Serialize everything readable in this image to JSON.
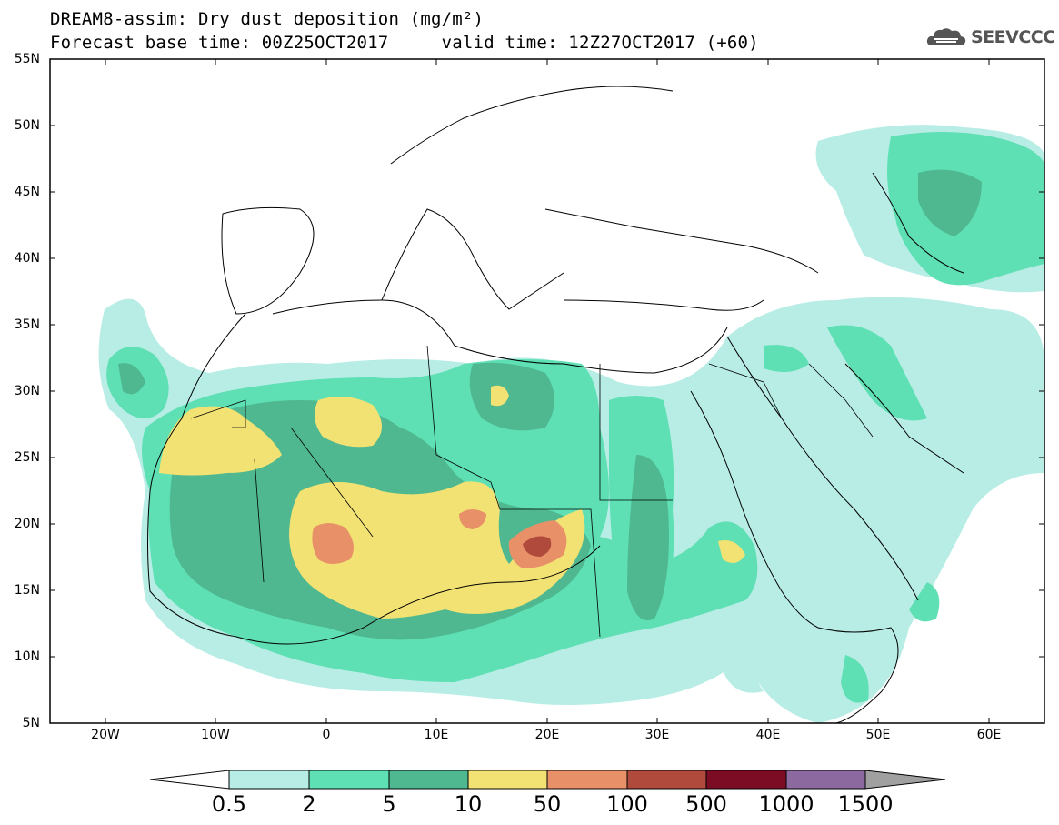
{
  "title": {
    "line1": "DREAM8-assim: Dry dust deposition (mg/m²)",
    "line2": "Forecast base time: 00Z25OCT2017     valid time: 12Z27OCT2017 (+60)"
  },
  "logo": {
    "text": "SEEVCCC",
    "icon": "cloud-icon"
  },
  "map": {
    "region": {
      "lon_range": [
        -25,
        65
      ],
      "lat_range": [
        5,
        55
      ]
    },
    "y_ticks": [
      "55N",
      "50N",
      "45N",
      "40N",
      "35N",
      "30N",
      "25N",
      "20N",
      "15N",
      "10N",
      "5N"
    ],
    "x_ticks": [
      "20W",
      "10W",
      "0",
      "10E",
      "20E",
      "30E",
      "40E",
      "50E",
      "60E"
    ]
  },
  "colorbar": {
    "labels": [
      "0.5",
      "2",
      "5",
      "10",
      "50",
      "100",
      "500",
      "1000",
      "1500"
    ],
    "colors": [
      "#b8ede6",
      "#5ee0b4",
      "#4fb890",
      "#f2e273",
      "#e89068",
      "#b04a3c",
      "#7c0c24",
      "#8c6aa0",
      "#a0a0a0"
    ]
  }
}
